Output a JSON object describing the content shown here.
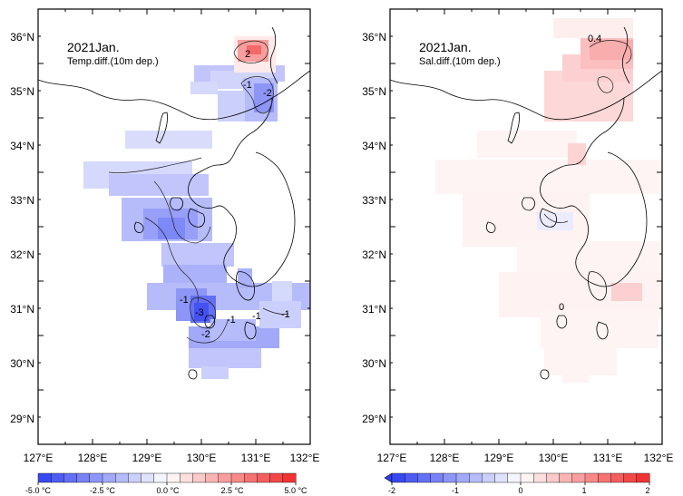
{
  "left_map": {
    "title": "2021Jan.",
    "subtitle": "Temp.diff.(10m dep.)",
    "lat_labels": [
      "36°N",
      "35°N",
      "34°N",
      "33°N",
      "32°N",
      "31°N",
      "30°N",
      "29°N"
    ],
    "lon_labels": [
      "127°E",
      "128°E",
      "129°E",
      "130°E",
      "131°E",
      "132°E"
    ],
    "contour_labels": [
      "2",
      "-1",
      "-2",
      "-1",
      "-3",
      "-2",
      "-1",
      "-1",
      "-1"
    ],
    "colorbar": {
      "labels": [
        "-5.0 °C",
        "-2.5 °C",
        "0.0 °C",
        "2.5 °C",
        "5.0 °C"
      ],
      "min": -5.0,
      "max": 5.0,
      "step": 0.5
    }
  },
  "right_map": {
    "title": "2021Jan.",
    "subtitle": "Sal.diff.(10m dep.)",
    "lat_labels": [
      "36°N",
      "35°N",
      "34°N",
      "33°N",
      "32°N",
      "31°N",
      "30°N",
      "29°N"
    ],
    "lon_labels": [
      "127°E",
      "128°E",
      "129°E",
      "130°E",
      "131°E",
      "132°E"
    ],
    "contour_labels": [
      "0.4",
      "0"
    ],
    "colorbar": {
      "labels": [
        "-2",
        "-1",
        "0",
        "1",
        "2"
      ],
      "min": -2,
      "max": 2,
      "step": 0.2
    }
  },
  "colors": {
    "neg_strong": "#2f3ff0",
    "neutral": "#ffffff",
    "pos_strong": "#f02828"
  }
}
